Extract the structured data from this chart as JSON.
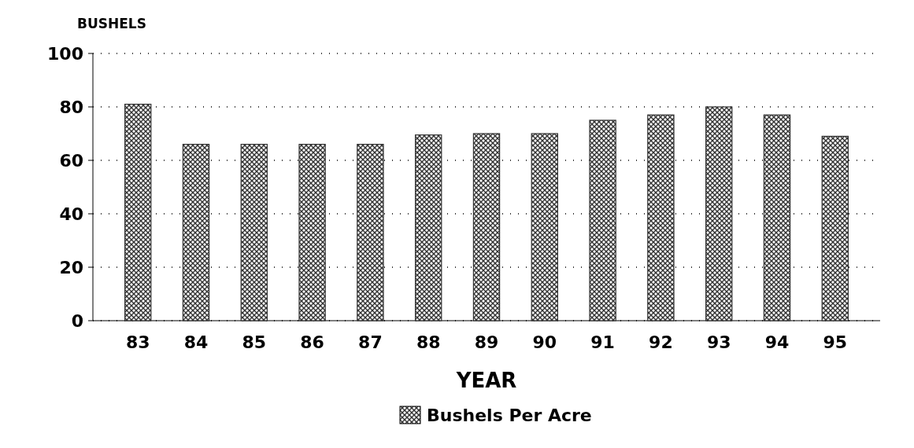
{
  "chart_data": {
    "type": "bar",
    "ylabel": "BUSHELS",
    "xlabel": "YEAR",
    "categories": [
      "83",
      "84",
      "85",
      "86",
      "87",
      "88",
      "89",
      "90",
      "91",
      "92",
      "93",
      "94",
      "95"
    ],
    "series": [
      {
        "name": "Bushels Per Acre",
        "color": "#333333",
        "values": [
          81,
          66,
          66,
          66,
          66,
          69.5,
          70,
          70,
          75,
          77,
          80,
          77,
          69
        ]
      }
    ],
    "ylim": [
      0,
      100
    ],
    "yticks": [
      0,
      20,
      40,
      60,
      80,
      100
    ],
    "grid": "y",
    "legend": "bottom"
  }
}
